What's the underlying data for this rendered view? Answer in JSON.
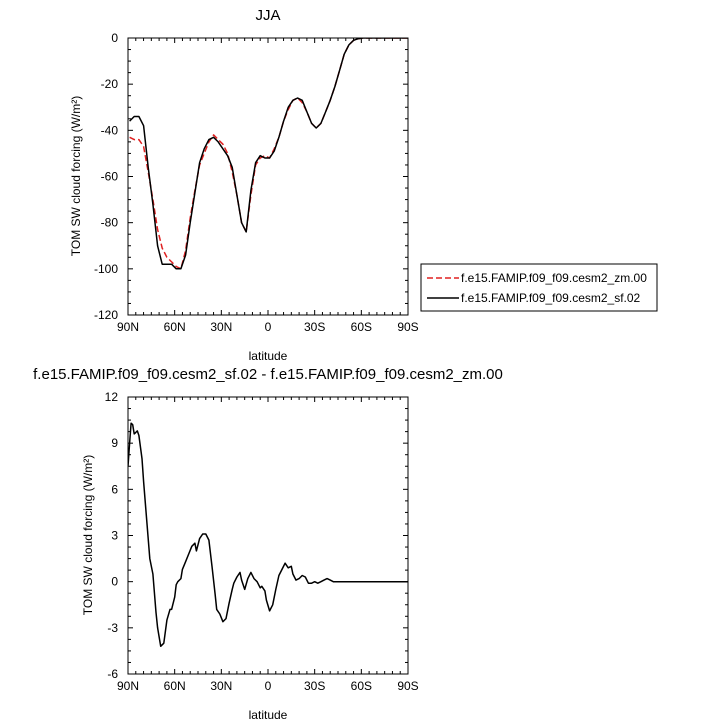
{
  "chart_data": [
    {
      "type": "line",
      "title": "JJA",
      "xlabel": "latitude",
      "ylabel": "TOM SW cloud forcing (W/m²)",
      "xlim": [
        90,
        -90
      ],
      "ylim": [
        -120,
        0
      ],
      "xticks": [
        90,
        60,
        30,
        0,
        -30,
        -60,
        -90
      ],
      "xtick_labels": [
        "90N",
        "60N",
        "30N",
        "0",
        "30S",
        "60S",
        "90S"
      ],
      "yticks": [
        0,
        -20,
        -40,
        -60,
        -80,
        -100,
        -120
      ],
      "ytick_labels": [
        "0",
        "-20",
        "-40",
        "-60",
        "-80",
        "-100",
        "-120"
      ],
      "grid": false,
      "legend_position": "right",
      "series": [
        {
          "name": "f.e15.FAMIP.f09_f09.cesm2_zm.00",
          "color": "#e02020",
          "dash": "dashed",
          "x": [
            89,
            86,
            83,
            80,
            77,
            74,
            71,
            68,
            65,
            62,
            59,
            56,
            53,
            50,
            47,
            44,
            41,
            38,
            35,
            32,
            29,
            26,
            23,
            20,
            17,
            14,
            11,
            8,
            5,
            2,
            -1,
            -4,
            -7,
            -10,
            -13,
            -16,
            -19,
            -22,
            -25,
            -28,
            -31,
            -34,
            -37,
            -40,
            -43,
            -46,
            -49,
            -52,
            -55,
            -58,
            -61,
            -64,
            -67,
            -70,
            -75,
            -80,
            -85,
            -90
          ],
          "y": [
            -43,
            -44,
            -44,
            -47,
            -58,
            -70,
            -83,
            -91,
            -95,
            -97,
            -99,
            -100,
            -92,
            -78,
            -66,
            -55,
            -50,
            -45,
            -42,
            -44,
            -46,
            -50,
            -58,
            -68,
            -80,
            -84,
            -68,
            -55,
            -52,
            -51,
            -52,
            -48,
            -43,
            -36,
            -31,
            -27,
            -26,
            -28,
            -32,
            -37,
            -39,
            -37,
            -32,
            -27,
            -21,
            -14,
            -7,
            -3,
            -1,
            -0.3,
            0,
            0,
            0,
            0,
            0,
            0,
            0,
            0
          ]
        },
        {
          "name": "f.e15.FAMIP.f09_f09.cesm2_sf.02",
          "color": "#000000",
          "dash": "solid",
          "x": [
            89,
            86,
            83,
            80,
            77,
            74,
            71,
            68,
            65,
            62,
            59,
            56,
            53,
            50,
            47,
            44,
            41,
            38,
            35,
            32,
            29,
            26,
            23,
            20,
            17,
            14,
            11,
            8,
            5,
            2,
            -1,
            -4,
            -7,
            -10,
            -13,
            -16,
            -19,
            -22,
            -25,
            -28,
            -31,
            -34,
            -37,
            -40,
            -43,
            -46,
            -49,
            -52,
            -55,
            -58,
            -61,
            -64,
            -67,
            -70,
            -75,
            -80,
            -85,
            -90
          ],
          "y": [
            -36,
            -34,
            -34,
            -38,
            -56,
            -72,
            -90,
            -98,
            -98,
            -98,
            -100,
            -100,
            -94,
            -80,
            -67,
            -54,
            -48,
            -44,
            -43,
            -45,
            -48,
            -51,
            -56,
            -68,
            -80,
            -84,
            -66,
            -54,
            -51,
            -52,
            -52,
            -49,
            -43,
            -36,
            -30,
            -27,
            -26,
            -27,
            -32,
            -37,
            -39,
            -37,
            -32,
            -27,
            -21,
            -14,
            -7,
            -3,
            -1,
            -0.3,
            0,
            0,
            0,
            0,
            0,
            0,
            0,
            0
          ]
        }
      ]
    },
    {
      "type": "line",
      "title": "f.e15.FAMIP.f09_f09.cesm2_sf.02 - f.e15.FAMIP.f09_f09.cesm2_zm.00",
      "xlabel": "latitude",
      "ylabel": "TOM SW cloud forcing (W/m²)",
      "xlim": [
        90,
        -90
      ],
      "ylim": [
        -6,
        12
      ],
      "xticks": [
        90,
        60,
        30,
        0,
        -30,
        -60,
        -90
      ],
      "xtick_labels": [
        "90N",
        "60N",
        "30N",
        "0",
        "30S",
        "60S",
        "90S"
      ],
      "yticks": [
        12,
        9,
        6,
        3,
        0,
        -3,
        -6
      ],
      "ytick_labels": [
        "12",
        "9",
        "6",
        "3",
        "0",
        "-3",
        "-6"
      ],
      "grid": false,
      "series": [
        {
          "color": "#000000",
          "dash": "solid",
          "x": [
            90,
            89,
            88,
            87,
            86,
            85,
            84,
            83,
            81,
            80,
            78,
            76,
            74,
            72,
            71,
            69,
            67,
            65,
            63,
            62,
            60,
            59,
            58,
            56,
            55,
            53,
            51,
            49,
            47,
            46,
            44,
            42,
            40,
            38,
            36,
            34,
            33,
            31,
            29,
            27,
            25,
            23,
            22,
            20,
            18,
            17,
            15,
            13,
            11,
            9,
            7,
            5,
            4,
            2,
            1,
            -1,
            -3,
            -5,
            -7,
            -9,
            -11,
            -13,
            -15,
            -16,
            -18,
            -20,
            -22,
            -24,
            -26,
            -28,
            -30,
            -32,
            -34,
            -36,
            -38,
            -40,
            -42,
            -44,
            -46,
            -48,
            -50,
            -52,
            -54,
            -56,
            -58,
            -60,
            -62,
            -64,
            -66,
            -68,
            -70,
            -75,
            -80,
            -85,
            -90
          ],
          "y": [
            7.5,
            9.0,
            10.3,
            10.2,
            9.6,
            9.7,
            9.8,
            9.5,
            8.0,
            6.5,
            4.0,
            1.5,
            0.5,
            -2.0,
            -3.0,
            -4.2,
            -4.0,
            -2.5,
            -1.8,
            -1.8,
            -1.0,
            -0.2,
            0.0,
            0.2,
            0.8,
            1.3,
            1.8,
            2.3,
            2.5,
            2.0,
            2.8,
            3.1,
            3.1,
            2.7,
            1.0,
            -0.8,
            -1.8,
            -2.1,
            -2.6,
            -2.4,
            -1.4,
            -0.5,
            -0.1,
            0.3,
            0.6,
            0.1,
            -0.5,
            0.2,
            0.6,
            0.2,
            0.0,
            -0.4,
            -0.3,
            -0.6,
            -1.2,
            -1.9,
            -1.5,
            -0.5,
            0.4,
            0.8,
            1.2,
            0.9,
            1.0,
            0.5,
            0.1,
            0.2,
            0.4,
            0.3,
            -0.1,
            -0.1,
            0.0,
            -0.1,
            0.0,
            0.1,
            0.2,
            0.1,
            0.0,
            0.0,
            0.0,
            0.0,
            0.0,
            0.0,
            0.0,
            0.0,
            0.0,
            0.0,
            0.0,
            0.0,
            0.0,
            0.0,
            0.0,
            0.0,
            0.0,
            0.0,
            0.0
          ]
        }
      ]
    }
  ]
}
